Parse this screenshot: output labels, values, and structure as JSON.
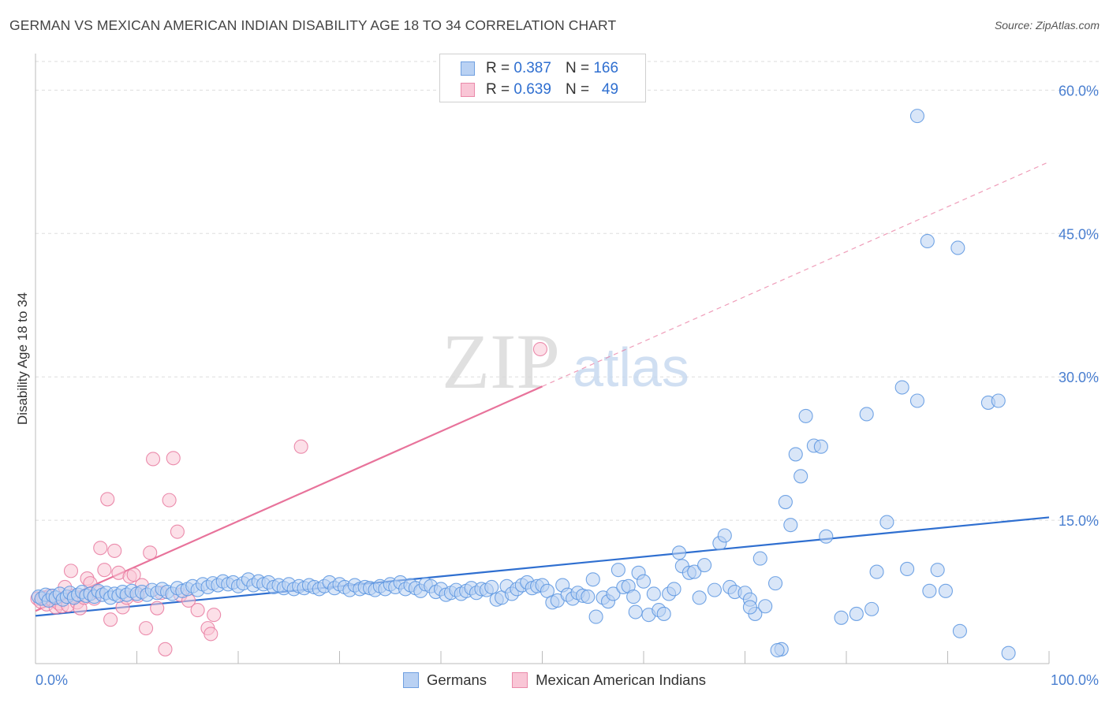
{
  "title": "GERMAN VS MEXICAN AMERICAN INDIAN DISABILITY AGE 18 TO 34 CORRELATION CHART",
  "source": "Source: ZipAtlas.com",
  "watermark": {
    "zip": "ZIP",
    "atlas": "atlas"
  },
  "legend": {
    "r_label": "R =",
    "n_label": "N =",
    "entries": [
      {
        "name": "Germans",
        "r": "0.387",
        "n": "166",
        "fill": "#b9d1f3",
        "stroke": "#6f9fe0"
      },
      {
        "name": "Mexican American Indians",
        "r": "0.639",
        "n": "49",
        "fill": "#f9c6d6",
        "stroke": "#ea8aaa"
      }
    ]
  },
  "chart_data": {
    "type": "scatter",
    "title": "GERMAN VS MEXICAN AMERICAN INDIAN DISABILITY AGE 18 TO 34 CORRELATION CHART",
    "xlabel": "",
    "ylabel": "Disability Age 18 to 34",
    "xlim": [
      0,
      100
    ],
    "ylim": [
      0,
      63
    ],
    "x_tick_labels": [
      {
        "value": 0,
        "label": "0.0%"
      },
      {
        "value": 100,
        "label": "100.0%"
      }
    ],
    "y_ticks": [
      {
        "value": 15,
        "label": "15.0%"
      },
      {
        "value": 30,
        "label": "30.0%"
      },
      {
        "value": 45,
        "label": "45.0%"
      },
      {
        "value": 60,
        "label": "60.0%"
      }
    ],
    "x_minor_ticks": [
      10,
      20,
      30,
      40,
      50,
      60,
      70,
      80,
      90,
      100
    ],
    "series": [
      {
        "name": "Germans",
        "color": "#5b95e0",
        "fill": "#b9d1f3",
        "trend": {
          "x0": 0,
          "y0": 5.0,
          "x1": 100,
          "y1": 15.3,
          "color": "#2f6fd0",
          "dashed_from": null
        },
        "points": [
          [
            0.3,
            7.0
          ],
          [
            0.6,
            6.8
          ],
          [
            1.0,
            7.2
          ],
          [
            1.3,
            6.6
          ],
          [
            1.7,
            7.1
          ],
          [
            2.0,
            6.9
          ],
          [
            2.4,
            7.3
          ],
          [
            2.7,
            6.7
          ],
          [
            3.1,
            7.0
          ],
          [
            3.4,
            7.4
          ],
          [
            3.8,
            6.9
          ],
          [
            4.2,
            7.2
          ],
          [
            4.6,
            7.5
          ],
          [
            5.0,
            7.1
          ],
          [
            5.4,
            7.3
          ],
          [
            5.8,
            7.0
          ],
          [
            6.2,
            7.6
          ],
          [
            6.6,
            7.2
          ],
          [
            7.0,
            7.4
          ],
          [
            7.4,
            6.9
          ],
          [
            7.8,
            7.3
          ],
          [
            8.2,
            7.1
          ],
          [
            8.6,
            7.5
          ],
          [
            9.0,
            7.2
          ],
          [
            9.5,
            7.6
          ],
          [
            10.0,
            7.3
          ],
          [
            10.5,
            7.5
          ],
          [
            11.0,
            7.2
          ],
          [
            11.5,
            7.7
          ],
          [
            12.0,
            7.4
          ],
          [
            12.5,
            7.8
          ],
          [
            13.0,
            7.5
          ],
          [
            13.5,
            7.3
          ],
          [
            14.0,
            7.9
          ],
          [
            14.5,
            7.6
          ],
          [
            15.0,
            7.8
          ],
          [
            15.5,
            8.1
          ],
          [
            16.0,
            7.7
          ],
          [
            16.5,
            8.3
          ],
          [
            17.0,
            8.0
          ],
          [
            17.5,
            8.4
          ],
          [
            18.0,
            8.2
          ],
          [
            18.5,
            8.6
          ],
          [
            19.0,
            8.3
          ],
          [
            19.5,
            8.5
          ],
          [
            20.0,
            8.1
          ],
          [
            20.5,
            8.4
          ],
          [
            21.0,
            8.8
          ],
          [
            21.5,
            8.2
          ],
          [
            22.0,
            8.6
          ],
          [
            22.5,
            8.3
          ],
          [
            23.0,
            8.5
          ],
          [
            23.5,
            8.0
          ],
          [
            24.0,
            8.2
          ],
          [
            24.5,
            7.9
          ],
          [
            25.0,
            8.3
          ],
          [
            25.5,
            7.8
          ],
          [
            26.0,
            8.1
          ],
          [
            26.5,
            7.9
          ],
          [
            27.0,
            8.2
          ],
          [
            27.5,
            8.0
          ],
          [
            28.0,
            7.8
          ],
          [
            28.5,
            8.1
          ],
          [
            29.0,
            8.5
          ],
          [
            29.5,
            7.9
          ],
          [
            30.0,
            8.3
          ],
          [
            30.5,
            8.0
          ],
          [
            31.0,
            7.7
          ],
          [
            31.5,
            8.2
          ],
          [
            32.0,
            7.8
          ],
          [
            32.5,
            8.0
          ],
          [
            33.0,
            7.9
          ],
          [
            33.5,
            7.7
          ],
          [
            34.0,
            8.1
          ],
          [
            34.5,
            7.8
          ],
          [
            35.0,
            8.3
          ],
          [
            35.5,
            8.0
          ],
          [
            36.0,
            8.5
          ],
          [
            36.5,
            7.8
          ],
          [
            37.0,
            8.2
          ],
          [
            37.5,
            7.9
          ],
          [
            38.0,
            7.6
          ],
          [
            38.5,
            8.3
          ],
          [
            39.0,
            8.1
          ],
          [
            39.5,
            7.5
          ],
          [
            40.0,
            7.8
          ],
          [
            40.5,
            7.2
          ],
          [
            41.0,
            7.4
          ],
          [
            41.5,
            7.7
          ],
          [
            42.0,
            7.3
          ],
          [
            42.5,
            7.6
          ],
          [
            43.0,
            7.9
          ],
          [
            43.5,
            7.4
          ],
          [
            44.0,
            7.8
          ],
          [
            44.5,
            7.7
          ],
          [
            45.0,
            8.0
          ],
          [
            45.5,
            6.7
          ],
          [
            46.0,
            6.9
          ],
          [
            46.5,
            8.1
          ],
          [
            47.0,
            7.3
          ],
          [
            47.5,
            7.8
          ],
          [
            48.0,
            8.2
          ],
          [
            48.5,
            8.5
          ],
          [
            49.0,
            7.9
          ],
          [
            49.5,
            8.1
          ],
          [
            50.0,
            8.2
          ],
          [
            50.5,
            7.6
          ],
          [
            51.0,
            6.4
          ],
          [
            51.5,
            6.6
          ],
          [
            52.0,
            8.2
          ],
          [
            52.5,
            7.2
          ],
          [
            53.0,
            6.8
          ],
          [
            53.5,
            7.4
          ],
          [
            54.0,
            7.1
          ],
          [
            54.5,
            7.0
          ],
          [
            55.0,
            8.8
          ],
          [
            55.3,
            4.9
          ],
          [
            56.0,
            6.9
          ],
          [
            56.5,
            6.5
          ],
          [
            57.0,
            7.3
          ],
          [
            57.5,
            9.8
          ],
          [
            58.0,
            8.0
          ],
          [
            58.5,
            8.1
          ],
          [
            59.0,
            7.0
          ],
          [
            59.5,
            9.5
          ],
          [
            60.0,
            8.6
          ],
          [
            59.2,
            5.4
          ],
          [
            60.5,
            5.1
          ],
          [
            61.0,
            7.3
          ],
          [
            61.5,
            5.6
          ],
          [
            62.0,
            5.2
          ],
          [
            62.5,
            7.3
          ],
          [
            63.0,
            7.8
          ],
          [
            63.5,
            11.6
          ],
          [
            63.8,
            10.2
          ],
          [
            64.5,
            9.5
          ],
          [
            65.0,
            9.6
          ],
          [
            65.5,
            6.9
          ],
          [
            66.0,
            10.3
          ],
          [
            67.0,
            7.7
          ],
          [
            67.5,
            12.6
          ],
          [
            68.0,
            13.4
          ],
          [
            68.5,
            8.0
          ],
          [
            69.0,
            7.5
          ],
          [
            70.0,
            7.4
          ],
          [
            70.5,
            6.7
          ],
          [
            71.0,
            5.2
          ],
          [
            71.5,
            11.0
          ],
          [
            72.0,
            6.0
          ],
          [
            73.0,
            8.4
          ],
          [
            74.0,
            16.9
          ],
          [
            74.5,
            14.5
          ],
          [
            75.0,
            21.9
          ],
          [
            75.5,
            19.6
          ],
          [
            76.0,
            25.9
          ],
          [
            76.8,
            22.8
          ],
          [
            77.5,
            22.7
          ],
          [
            78.0,
            13.3
          ],
          [
            79.5,
            4.8
          ],
          [
            81.0,
            5.2
          ],
          [
            82.0,
            26.1
          ],
          [
            82.5,
            5.7
          ],
          [
            83.0,
            9.6
          ],
          [
            84.0,
            14.8
          ],
          [
            85.5,
            28.9
          ],
          [
            86.0,
            9.9
          ],
          [
            87.0,
            27.5
          ],
          [
            88.0,
            44.2
          ],
          [
            88.2,
            7.6
          ],
          [
            89.0,
            9.8
          ],
          [
            89.8,
            7.6
          ],
          [
            91.0,
            43.5
          ],
          [
            91.2,
            3.4
          ],
          [
            94.0,
            27.3
          ],
          [
            95.0,
            27.5
          ],
          [
            96.0,
            1.1
          ],
          [
            87.0,
            57.3
          ],
          [
            73.6,
            1.5
          ],
          [
            73.2,
            1.4
          ],
          [
            70.5,
            5.9
          ]
        ]
      },
      {
        "name": "Mexican American Indians",
        "color": "#e8799f",
        "fill": "#f9c6d6",
        "trend": {
          "x0": 0,
          "y0": 5.5,
          "x1": 100,
          "y1": 52.5,
          "color": "#e8739b",
          "dashed_from": 50
        },
        "points": [
          [
            0.2,
            6.8
          ],
          [
            0.5,
            6.5
          ],
          [
            0.8,
            6.9
          ],
          [
            1.1,
            6.2
          ],
          [
            1.4,
            7.1
          ],
          [
            1.7,
            6.6
          ],
          [
            2.0,
            5.9
          ],
          [
            2.3,
            6.3
          ],
          [
            2.6,
            6.0
          ],
          [
            2.9,
            8.0
          ],
          [
            3.2,
            6.1
          ],
          [
            3.5,
            9.7
          ],
          [
            3.8,
            7.1
          ],
          [
            4.1,
            6.4
          ],
          [
            4.4,
            5.8
          ],
          [
            4.8,
            6.9
          ],
          [
            5.1,
            8.9
          ],
          [
            5.4,
            8.4
          ],
          [
            5.8,
            6.8
          ],
          [
            6.1,
            7.5
          ],
          [
            6.4,
            12.1
          ],
          [
            6.8,
            9.8
          ],
          [
            7.1,
            17.2
          ],
          [
            7.4,
            4.6
          ],
          [
            7.8,
            11.8
          ],
          [
            8.2,
            9.5
          ],
          [
            8.6,
            5.9
          ],
          [
            9.0,
            6.9
          ],
          [
            9.3,
            9.1
          ],
          [
            9.7,
            9.3
          ],
          [
            10.1,
            7.1
          ],
          [
            10.5,
            8.2
          ],
          [
            10.9,
            3.7
          ],
          [
            11.3,
            11.6
          ],
          [
            11.6,
            21.4
          ],
          [
            12.0,
            5.8
          ],
          [
            12.4,
            7.4
          ],
          [
            12.8,
            1.5
          ],
          [
            13.2,
            17.1
          ],
          [
            13.6,
            21.5
          ],
          [
            14.0,
            13.8
          ],
          [
            14.3,
            7.2
          ],
          [
            15.1,
            6.6
          ],
          [
            16.0,
            5.6
          ],
          [
            17.0,
            3.7
          ],
          [
            17.3,
            3.1
          ],
          [
            17.6,
            5.1
          ],
          [
            26.2,
            22.7
          ],
          [
            49.8,
            32.9
          ]
        ]
      }
    ]
  }
}
